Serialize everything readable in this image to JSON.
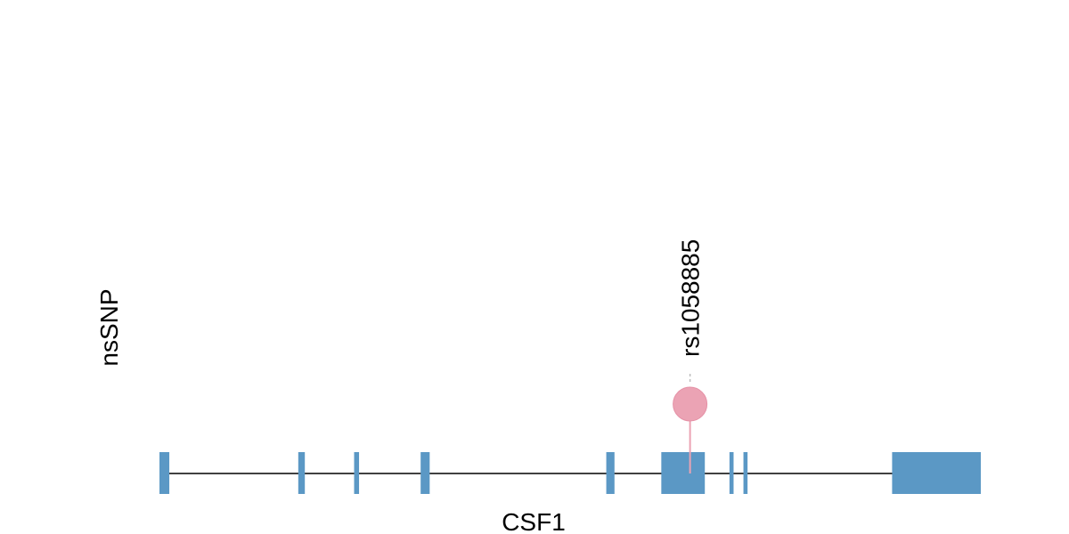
{
  "track": {
    "label": "nsSNP",
    "gene_name": "CSF1"
  },
  "gene": {
    "color": "#5b98c5",
    "exons": [
      {
        "start": 0.0,
        "end": 0.012
      },
      {
        "start": 0.169,
        "end": 0.177
      },
      {
        "start": 0.237,
        "end": 0.243
      },
      {
        "start": 0.318,
        "end": 0.329
      },
      {
        "start": 0.544,
        "end": 0.554
      },
      {
        "start": 0.611,
        "end": 0.664
      },
      {
        "start": 0.694,
        "end": 0.699
      },
      {
        "start": 0.711,
        "end": 0.716
      },
      {
        "start": 0.892,
        "end": 1.0
      }
    ]
  },
  "snps": [
    {
      "id": "rs1058885",
      "position": 0.646,
      "color": "#eba3b4"
    }
  ]
}
